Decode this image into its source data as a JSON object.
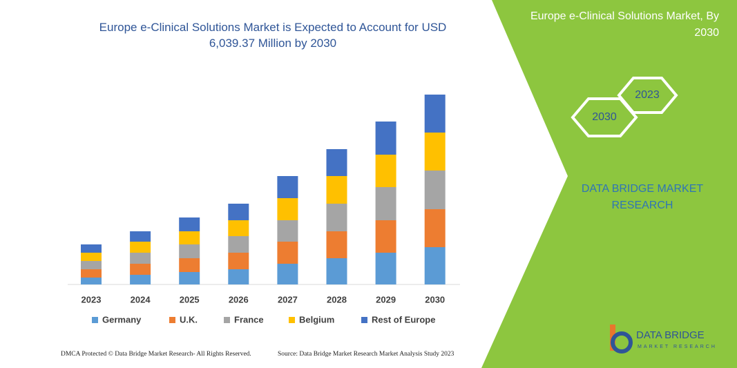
{
  "chart_data": {
    "type": "stacked-bar",
    "title": "Europe e-Clinical Solutions Market is Expected to Account for USD 6,039.37 Million by 2030",
    "categories": [
      "2023",
      "2024",
      "2025",
      "2026",
      "2027",
      "2028",
      "2029",
      "2030"
    ],
    "series": [
      {
        "name": "Germany",
        "color": "#5b9bd5",
        "values": [
          220,
          308,
          396,
          484,
          660,
          836,
          1012,
          1188
        ]
      },
      {
        "name": "U.K.",
        "color": "#ed7d31",
        "values": [
          264,
          352,
          440,
          528,
          704,
          858,
          1034,
          1210
        ]
      },
      {
        "name": "France",
        "color": "#a5a5a5",
        "values": [
          264,
          352,
          440,
          528,
          682,
          880,
          1056,
          1232
        ]
      },
      {
        "name": "Belgium",
        "color": "#ffc000",
        "values": [
          264,
          352,
          418,
          506,
          704,
          880,
          1034,
          1210
        ]
      },
      {
        "name": "Rest of Europe",
        "color": "#4472c4",
        "values": [
          264,
          330,
          440,
          528,
          704,
          858,
          1056,
          1210
        ]
      }
    ]
  },
  "panel": {
    "title": "Europe e-Clinical Solutions Market, By 2030",
    "hex_left": "2030",
    "hex_right": "2023",
    "brand": "DATA BRIDGE MARKET RESEARCH"
  },
  "logo": {
    "name": "DATA BRIDGE",
    "tagline": "MARKET RESEARCH"
  },
  "footer": {
    "left": "DMCA Protected © Data Bridge Market Research- All Rights Reserved.",
    "right": "Source: Data Bridge Market Research Market Analysis Study 2023"
  }
}
